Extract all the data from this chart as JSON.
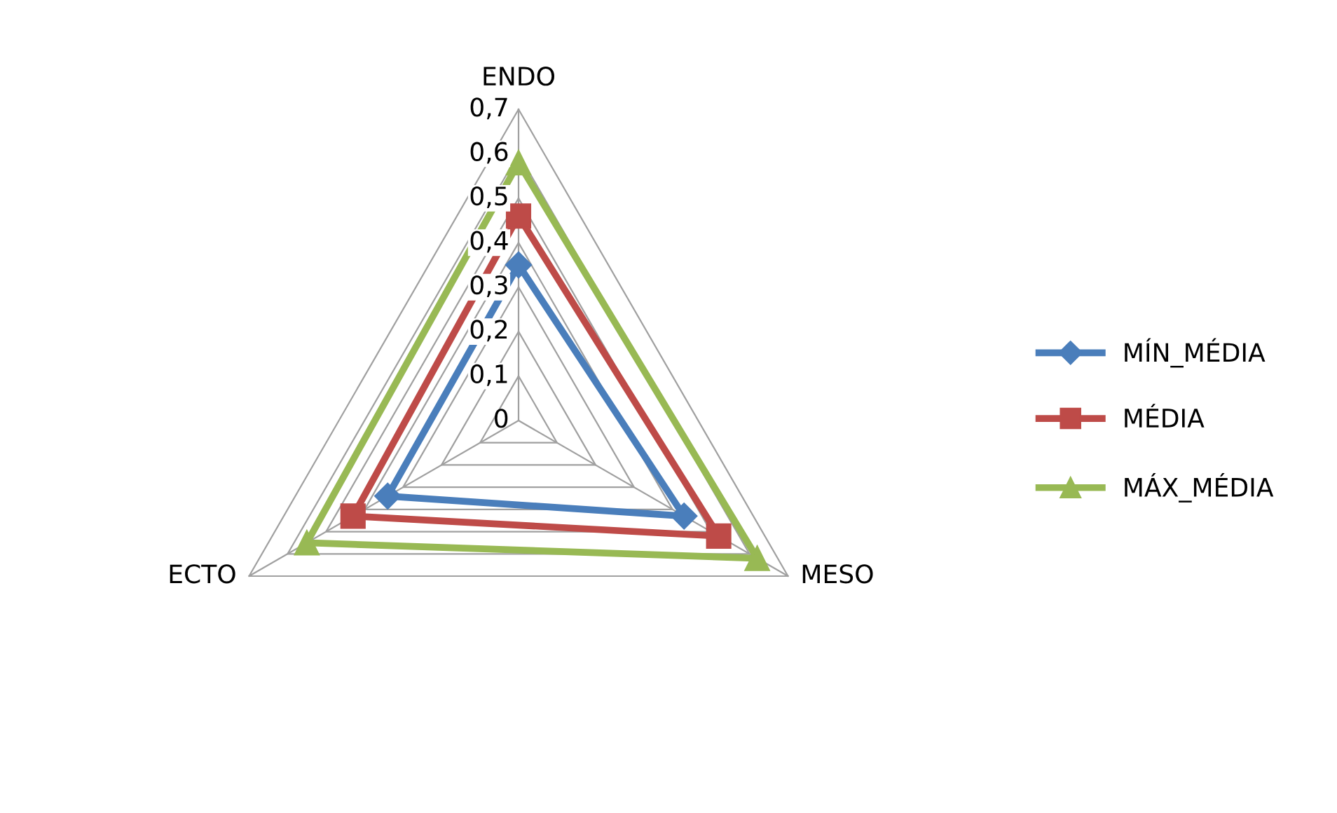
{
  "chart_data": {
    "type": "radar",
    "categories": [
      "ENDO",
      "MESO",
      "ECTO"
    ],
    "ylim": [
      0,
      0.7
    ],
    "yticks": [
      0,
      {
        "value": 0.1,
        "label": "0,1"
      },
      {
        "value": 0.2,
        "label": "0,2"
      },
      {
        "value": 0.3,
        "label": "0,3"
      },
      {
        "value": 0.4,
        "label": "0,4"
      },
      {
        "value": 0.5,
        "label": "0,5"
      },
      {
        "value": 0.6,
        "label": "0,6"
      },
      {
        "value": 0.7,
        "label": "0,7"
      }
    ],
    "grid": true,
    "legend": "right",
    "series": [
      {
        "name": "MÍN_MÉDIA",
        "color": "#4a7ebb",
        "marker": "diamond",
        "values": [
          0.35,
          0.43,
          0.34
        ]
      },
      {
        "name": "MÉDIA",
        "color": "#be4b48",
        "marker": "square",
        "values": [
          0.46,
          0.52,
          0.43
        ]
      },
      {
        "name": "MÁX_MÉDIA",
        "color": "#98b954",
        "marker": "triangle",
        "values": [
          0.58,
          0.62,
          0.55
        ]
      }
    ]
  }
}
